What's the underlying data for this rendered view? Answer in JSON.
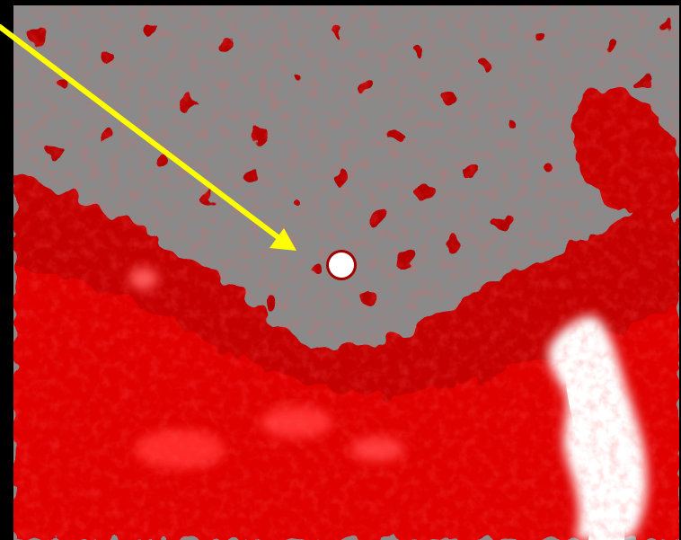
{
  "image": {
    "kind": "heat-overlay-micrograph",
    "colors": {
      "border": "#000000",
      "background": "#8a8a8a",
      "heat_dark": "#b00000",
      "heat_mid": "#e00000",
      "heat_bright": "#ff2a2a",
      "heat_peak": "#ffffff",
      "arrow": "#ffff00",
      "marker_fill": "#ffffff",
      "marker_ring": "#a00000"
    },
    "icons": {
      "arrow": "pointer-arrow-icon",
      "marker": "target-marker-icon"
    }
  }
}
